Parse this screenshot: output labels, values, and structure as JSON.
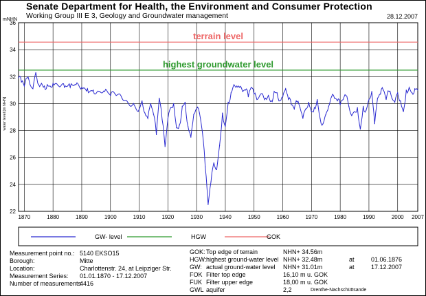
{
  "header": {
    "title": "Senate Department for Health, the Environment and Consumer Protection",
    "subtitle": "Working Group III E 3, Geology and Groundwater management",
    "date": "28.12.2007"
  },
  "chart_data": {
    "type": "line",
    "ylabel": "mNHN",
    "ylabel_rotated": "water level [m NHN]",
    "xlim": [
      1868,
      2007
    ],
    "ylim": [
      22,
      36
    ],
    "yticks": [
      22,
      24,
      26,
      28,
      30,
      32,
      34,
      36
    ],
    "xticks": [
      1870,
      1880,
      1890,
      1900,
      1910,
      1920,
      1930,
      1940,
      1950,
      1960,
      1970,
      1980,
      1990,
      2000,
      2007
    ],
    "reference_lines": [
      {
        "name": "terrain level",
        "value": 34.56,
        "color": "#ee6666"
      },
      {
        "name": "highest groundwater level",
        "value": 32.48,
        "color": "#2e9a2e"
      }
    ],
    "series": [
      {
        "name": "GW-level",
        "color": "#2a2ad0",
        "x": [
          1868,
          1869,
          1870,
          1871,
          1872,
          1873,
          1874,
          1875,
          1876,
          1877,
          1878,
          1879,
          1880,
          1882,
          1884,
          1886,
          1888,
          1890,
          1892,
          1894,
          1896,
          1898,
          1900,
          1902,
          1904,
          1906,
          1908,
          1910,
          1911,
          1912,
          1913,
          1914,
          1915,
          1916,
          1917,
          1918,
          1919,
          1920,
          1921,
          1922,
          1923,
          1924,
          1925,
          1926,
          1927,
          1928,
          1929,
          1930,
          1931,
          1932,
          1933,
          1934,
          1935,
          1936,
          1937,
          1938,
          1939,
          1940,
          1941,
          1942,
          1943,
          1944,
          1945,
          1946,
          1947,
          1948,
          1949,
          1950,
          1951,
          1952,
          1953,
          1954,
          1955,
          1956,
          1957,
          1958,
          1959,
          1960,
          1961,
          1962,
          1963,
          1964,
          1965,
          1966,
          1967,
          1968,
          1969,
          1970,
          1971,
          1972,
          1973,
          1974,
          1975,
          1976,
          1977,
          1978,
          1979,
          1980,
          1981,
          1982,
          1983,
          1984,
          1985,
          1986,
          1987,
          1988,
          1989,
          1990,
          1991,
          1992,
          1993,
          1994,
          1995,
          1996,
          1997,
          1998,
          1999,
          2000,
          2001,
          2002,
          2003,
          2004,
          2005,
          2006,
          2007
        ],
        "values": [
          31.9,
          31.6,
          31.3,
          31.9,
          31.4,
          31.1,
          32.3,
          31.4,
          31.5,
          31.3,
          31.4,
          31.3,
          31.5,
          31.3,
          31.2,
          31.2,
          31.4,
          31.2,
          31.1,
          31.0,
          30.9,
          30.9,
          30.6,
          30.6,
          30.4,
          30.1,
          30.0,
          29.6,
          30.2,
          29.3,
          28.9,
          30.0,
          29.2,
          27.7,
          30.4,
          28.8,
          26.8,
          28.9,
          29.7,
          30.0,
          28.2,
          28.4,
          29.8,
          30.1,
          28.3,
          27.5,
          29.2,
          29.6,
          29.3,
          27.9,
          25.3,
          22.5,
          24.2,
          25.6,
          25.1,
          26.9,
          29.3,
          28.3,
          30.1,
          30.8,
          31.4,
          31.3,
          31.2,
          30.9,
          31.0,
          30.5,
          31.2,
          30.7,
          30.3,
          30.6,
          30.7,
          30.4,
          30.6,
          30.2,
          30.9,
          30.8,
          30.2,
          30.5,
          31.1,
          30.3,
          29.9,
          29.6,
          30.1,
          29.7,
          28.9,
          29.6,
          30.1,
          29.4,
          29.7,
          30.3,
          28.9,
          28.5,
          29.2,
          29.8,
          30.5,
          30.4,
          30.2,
          29.9,
          30.3,
          30.6,
          29.8,
          29.1,
          29.4,
          29.7,
          28.1,
          29.8,
          29.5,
          30.3,
          30.9,
          28.5,
          30.4,
          30.7,
          31.0,
          30.3,
          30.9,
          30.4,
          30.1,
          30.8,
          30.2,
          29.4,
          31.0,
          31.2,
          30.8,
          31.1,
          31.0
        ]
      }
    ]
  },
  "legend": {
    "items": [
      {
        "label": "GW- level",
        "color": "#2a2ad0"
      },
      {
        "label": "HGW",
        "color": "#2e9a2e"
      },
      {
        "label": "GOK",
        "color": "#ee6666"
      }
    ]
  },
  "info_left": {
    "labels": [
      "Measurement point no.:",
      "Borough:",
      "Location:",
      "Measurement Series:",
      "Number of measurements:"
    ],
    "values": [
      "5140 EKSO15",
      "Mitte",
      "Charlottenstr. 24, at Leipziger Str.",
      "01.01.1870  -  17.12.2007",
      "4416"
    ]
  },
  "info_right": {
    "gok": {
      "code": "GOK:",
      "desc": "Top edge of terrain",
      "value": "NHN+ 34.56m"
    },
    "hgw": {
      "code": "HGW:",
      "desc": "highest ground-water level",
      "value": "NHN+ 32.48m",
      "at": "at",
      "date": "01.06.1876"
    },
    "gw": {
      "code": "GW:",
      "desc": "actual ground-water level",
      "value": "NHN+ 31.01m",
      "at": "at",
      "date": "17.12.2007"
    },
    "fok": {
      "code": "FOK",
      "desc": "Filter top edge",
      "value": "16,10  m   u. GOK"
    },
    "fuk": {
      "code": "FUK",
      "desc": "Filter upper edge",
      "value": "18,00  m   u. GOK"
    },
    "gwl": {
      "code": "GWL",
      "desc": "aquifer",
      "value": "2,2",
      "extra": "Drenthe-Nachschüttsande"
    }
  }
}
